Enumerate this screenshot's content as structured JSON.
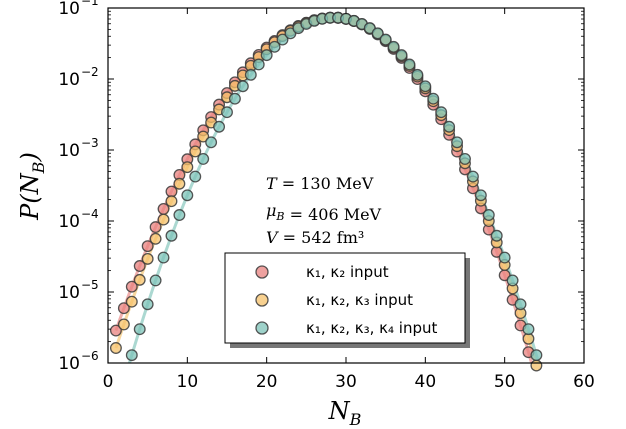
{
  "chart_data": {
    "type": "scatter",
    "title": "",
    "xlabel": "N_B",
    "ylabel": "P(N_B)",
    "xlim": [
      0,
      60
    ],
    "ylim": [
      1e-06,
      0.1
    ],
    "yscale": "log",
    "xticks": [
      0,
      10,
      20,
      30,
      40,
      50,
      60
    ],
    "xtick_labels": [
      "0",
      "10",
      "20",
      "30",
      "40",
      "50",
      "60"
    ],
    "yticks": [
      1e-06,
      1e-05,
      0.0001,
      0.001,
      0.01,
      0.1
    ],
    "ytick_labels": [
      {
        "base": "10",
        "exp": "−6"
      },
      {
        "base": "10",
        "exp": "−5"
      },
      {
        "base": "10",
        "exp": "−4"
      },
      {
        "base": "10",
        "exp": "−3"
      },
      {
        "base": "10",
        "exp": "−2"
      },
      {
        "base": "10",
        "exp": "−1"
      }
    ],
    "annotations": [
      {
        "lhs": "T",
        "rhs": "130 MeV"
      },
      {
        "lhs": "μ_B",
        "rhs": "406 MeV"
      },
      {
        "lhs": "V",
        "rhs": "542 fm³"
      }
    ],
    "series": [
      {
        "name": "κ₁, κ₂ input",
        "color": "#e8827f",
        "mean": 28.5,
        "sigma": 5.45,
        "peak": 0.0732
      },
      {
        "name": "κ₁, κ₂, κ₃ input",
        "color": "#f5c16b",
        "mean": 28.5,
        "sigma": 5.45,
        "peak": 0.0732
      },
      {
        "name": "κ₁, κ₂, κ₃, κ₄ input",
        "color": "#7ec3b8",
        "mean": 28.5,
        "sigma": 5.45,
        "peak": 0.0732
      }
    ],
    "legend_position": "lower-center",
    "grid": false
  }
}
